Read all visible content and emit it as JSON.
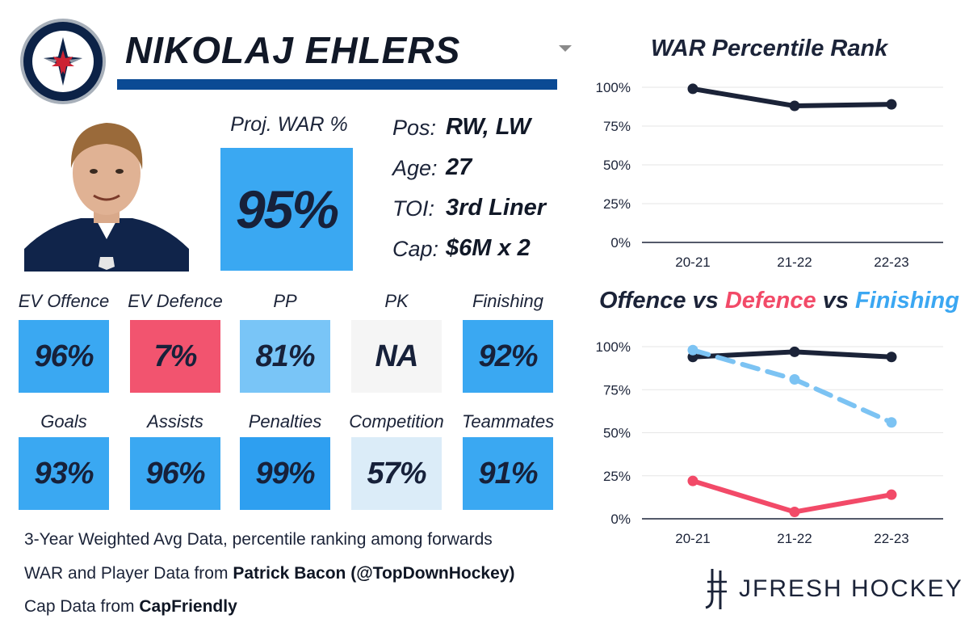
{
  "player": {
    "name": "NIKOLAJ EHLERS",
    "proj_war_label": "Proj. WAR %",
    "proj_war_value": "95%",
    "proj_war_color": "#3aa8f2"
  },
  "info": [
    {
      "label": "Pos:",
      "value": "RW, LW"
    },
    {
      "label": "Age:",
      "value": "27"
    },
    {
      "label": "TOI:",
      "value": "3rd Liner"
    },
    {
      "label": "Cap:",
      "value": "$6M x 2"
    }
  ],
  "stats_row1": [
    {
      "label": "EV Offence",
      "value": "96%",
      "color": "#3aa8f2"
    },
    {
      "label": "EV Defence",
      "value": "7%",
      "color": "#f2546f"
    },
    {
      "label": "PP",
      "value": "81%",
      "color": "#79c5f7"
    },
    {
      "label": "PK",
      "value": "NA",
      "color": "#f5f5f5"
    },
    {
      "label": "Finishing",
      "value": "92%",
      "color": "#3aa8f2"
    }
  ],
  "stats_row2": [
    {
      "label": "Goals",
      "value": "93%",
      "color": "#3aa8f2"
    },
    {
      "label": "Assists",
      "value": "96%",
      "color": "#3aa8f2"
    },
    {
      "label": "Penalties",
      "value": "99%",
      "color": "#2e9ff0"
    },
    {
      "label": "Competition",
      "value": "57%",
      "color": "#dbecf8"
    },
    {
      "label": "Teammates",
      "value": "91%",
      "color": "#3aa8f2"
    }
  ],
  "footer": {
    "line1": "3-Year Weighted Avg Data, percentile ranking among forwards",
    "line2_prefix": "WAR and Player Data from ",
    "line2_bold": "Patrick Bacon (@TopDownHockey)",
    "line3_prefix": "Cap Data from ",
    "line3_bold": "CapFriendly"
  },
  "brand": {
    "text": "JFRESH HOCKEY"
  },
  "chart_data": [
    {
      "type": "line",
      "title": "WAR Percentile Rank",
      "categories": [
        "20-21",
        "21-22",
        "22-23"
      ],
      "yticks": [
        "0%",
        "25%",
        "50%",
        "75%",
        "100%"
      ],
      "ylim": [
        0,
        100
      ],
      "grid": true,
      "series": [
        {
          "values": [
            99,
            88,
            89
          ],
          "color": "#1b2338",
          "dashed": false
        }
      ]
    },
    {
      "type": "line",
      "title_parts": {
        "a": "Offence",
        "vs1": " vs ",
        "b": "Defence",
        "vs2": " vs ",
        "c": "Finishing"
      },
      "categories": [
        "20-21",
        "21-22",
        "22-23"
      ],
      "yticks": [
        "0%",
        "25%",
        "50%",
        "75%",
        "100%"
      ],
      "ylim": [
        0,
        100
      ],
      "grid": true,
      "series": [
        {
          "name": "Offence",
          "values": [
            94,
            97,
            94
          ],
          "color": "#1b2338",
          "dashed": false
        },
        {
          "name": "Defence",
          "values": [
            22,
            4,
            14
          ],
          "color": "#f24a68",
          "dashed": false
        },
        {
          "name": "Finishing",
          "values": [
            98,
            81,
            56
          ],
          "color": "#7cc3f3",
          "dashed": true
        }
      ]
    }
  ]
}
